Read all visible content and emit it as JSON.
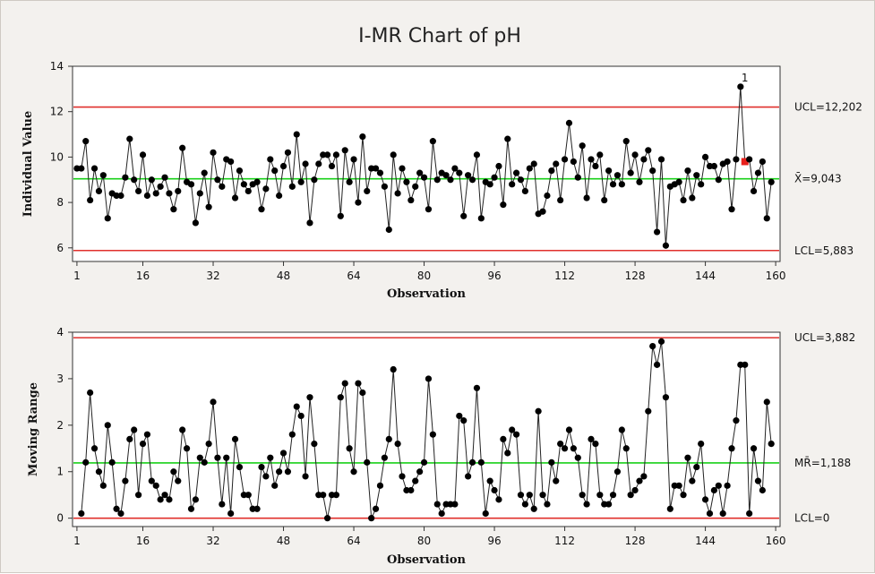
{
  "title": "I-MR Chart of pH",
  "colors": {
    "background": "#f3f1ee",
    "control_limit": "#e0302c",
    "center_line": "#19d019",
    "series": "#000000",
    "out_of_control": "#e8201c"
  },
  "chart_data": [
    {
      "type": "line",
      "name": "Individual Value",
      "xlabel": "Observation",
      "ylabel": "Individual Value",
      "xlim": [
        0,
        161
      ],
      "ylim": [
        5.4,
        14
      ],
      "xticks": [
        1,
        16,
        32,
        48,
        64,
        80,
        96,
        112,
        128,
        144,
        160
      ],
      "yticks": [
        6,
        8,
        10,
        12,
        14
      ],
      "limits": {
        "ucl": 12.202,
        "center": 9.043,
        "lcl": 5.883
      },
      "limit_labels": {
        "ucl": "UCL=12,202",
        "center": "X̄=9,043",
        "lcl": "LCL=5,883"
      },
      "flagged": [
        {
          "x": 153,
          "y": 13.1,
          "label": "1"
        }
      ],
      "values": [
        9.5,
        9.5,
        10.7,
        8.1,
        9.5,
        8.5,
        9.2,
        7.3,
        8.4,
        8.3,
        8.3,
        9.1,
        10.8,
        9.0,
        8.5,
        10.1,
        8.3,
        9.0,
        8.4,
        8.7,
        9.1,
        8.4,
        7.7,
        8.5,
        10.4,
        8.9,
        8.8,
        7.1,
        8.4,
        9.3,
        7.8,
        10.2,
        9.0,
        8.7,
        9.9,
        9.8,
        8.2,
        9.4,
        8.8,
        8.5,
        8.8,
        8.9,
        7.7,
        8.6,
        9.9,
        9.4,
        8.3,
        9.6,
        10.2,
        8.7,
        11.0,
        8.9,
        9.7,
        7.1,
        9.0,
        9.7,
        10.1,
        10.1,
        9.6,
        10.1,
        7.4,
        10.3,
        8.9,
        9.9,
        8.0,
        10.9,
        8.5,
        9.5,
        9.5,
        9.3,
        8.7,
        6.8,
        10.1,
        8.4,
        9.5,
        8.9,
        8.1,
        8.7,
        9.3,
        9.1,
        7.7,
        10.7,
        9.0,
        9.3,
        9.2,
        9.0,
        9.5,
        9.3,
        7.4,
        9.2,
        9.0,
        10.1,
        7.3,
        8.9,
        8.8,
        9.1,
        9.6,
        7.9,
        10.8,
        8.8,
        9.3,
        9.0,
        8.5,
        9.5,
        9.7,
        7.5,
        7.6,
        8.3,
        9.4,
        9.7,
        8.1,
        9.9,
        11.5,
        9.8,
        9.1,
        10.5,
        8.2,
        9.9,
        9.6,
        10.1,
        8.1,
        9.4,
        8.8,
        9.2,
        8.8,
        10.7,
        9.3,
        10.1,
        8.9,
        9.9,
        10.3,
        9.4,
        6.7,
        9.9,
        6.1,
        8.7,
        8.8,
        8.9,
        8.1,
        9.4,
        8.2,
        9.2,
        8.8,
        10.0,
        9.6,
        9.6,
        9.0,
        9.7,
        9.8,
        7.7,
        9.9,
        13.1,
        9.8,
        9.9,
        8.5,
        9.3,
        9.8,
        7.3,
        8.9
      ]
    },
    {
      "type": "line",
      "name": "Moving Range",
      "xlabel": "Observation",
      "ylabel": "Moving Range",
      "xlim": [
        0,
        161
      ],
      "ylim": [
        -0.18,
        4
      ],
      "xticks": [
        1,
        16,
        32,
        48,
        64,
        80,
        96,
        112,
        128,
        144,
        160
      ],
      "yticks": [
        0,
        1,
        2,
        3,
        4
      ],
      "limits": {
        "ucl": 3.882,
        "center": 1.188,
        "lcl": 0
      },
      "limit_labels": {
        "ucl": "UCL=3,882",
        "center": "MR̄=1,188",
        "lcl": "LCL=0"
      },
      "start_x": 2,
      "values": [
        0.1,
        1.2,
        2.7,
        1.5,
        1.0,
        0.7,
        2.0,
        1.2,
        0.2,
        0.1,
        0.8,
        1.7,
        1.9,
        0.5,
        1.6,
        1.8,
        0.8,
        0.7,
        0.4,
        0.5,
        0.4,
        1.0,
        0.8,
        1.9,
        1.5,
        0.2,
        0.4,
        1.3,
        1.2,
        1.6,
        2.5,
        1.3,
        0.3,
        1.3,
        0.1,
        1.7,
        1.1,
        0.5,
        0.5,
        0.2,
        0.2,
        1.1,
        0.9,
        1.3,
        0.7,
        1.0,
        1.4,
        1.0,
        1.8,
        2.4,
        2.2,
        0.9,
        2.6,
        1.6,
        0.5,
        0.5,
        0.0,
        0.5,
        0.5,
        2.6,
        2.9,
        1.5,
        1.0,
        2.9,
        2.7,
        1.2,
        0.0,
        0.2,
        0.7,
        1.3,
        1.7,
        3.2,
        1.6,
        0.9,
        0.6,
        0.6,
        0.8,
        1.0,
        1.2,
        3.0,
        1.8,
        0.3,
        0.1,
        0.3,
        0.3,
        0.3,
        2.2,
        2.1,
        0.9,
        1.2,
        2.8,
        1.2,
        0.1,
        0.8,
        0.6,
        0.4,
        1.7,
        1.4,
        1.9,
        1.8,
        0.5,
        0.3,
        0.5,
        0.2,
        2.3,
        0.5,
        0.3,
        1.2,
        0.8,
        1.6,
        1.5,
        1.9,
        1.5,
        1.3,
        0.5,
        0.3,
        1.7,
        1.6,
        0.5,
        0.3,
        0.3,
        0.5,
        1.0,
        1.9,
        1.5,
        0.5,
        0.6,
        0.8,
        0.9,
        2.3,
        3.7,
        3.3,
        3.8,
        2.6,
        0.2,
        0.7,
        0.7,
        0.5,
        1.3,
        0.8,
        1.1,
        1.6,
        0.4,
        0.1,
        0.6,
        0.7,
        0.1,
        0.7,
        1.5,
        2.1,
        3.3,
        3.3,
        0.1,
        1.5,
        0.8,
        0.6,
        2.5,
        1.6
      ]
    }
  ]
}
